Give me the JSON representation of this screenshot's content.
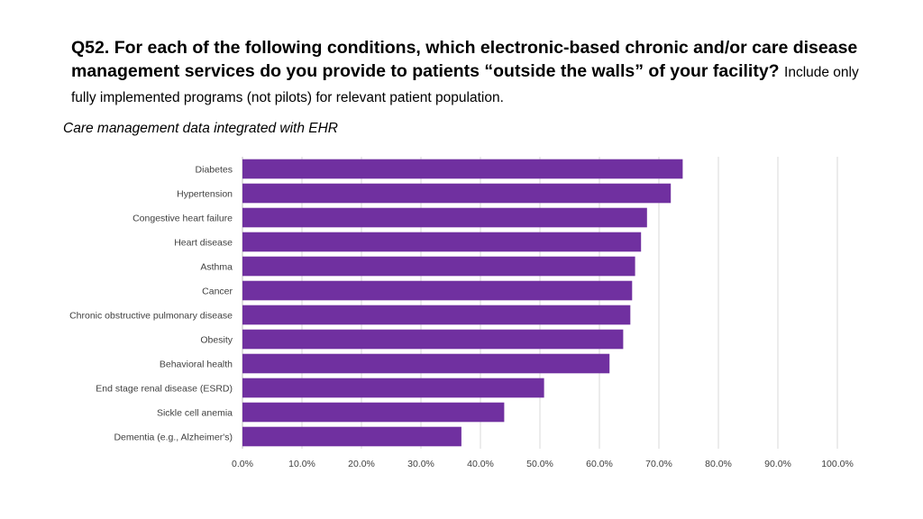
{
  "question": {
    "number_and_text": "Q52. For each of the following conditions, which electronic-based chronic and/or care disease management services do you provide to patients “outside the walls” of your facility?",
    "instruction": "Include only fully implemented programs (not pilots) for relevant patient population."
  },
  "chart_data": {
    "type": "bar",
    "orientation": "horizontal",
    "title": "Care management data integrated with EHR",
    "xlabel": "",
    "ylabel": "",
    "xlim": [
      0,
      1.0
    ],
    "x_ticks": [
      "0.0%",
      "10.0%",
      "20.0%",
      "30.0%",
      "40.0%",
      "50.0%",
      "60.0%",
      "70.0%",
      "80.0%",
      "90.0%",
      "100.0%"
    ],
    "grid": true,
    "bar_color": "#7030a0",
    "categories": [
      "Diabetes",
      "Hypertension",
      "Congestive heart failure",
      "Heart disease",
      "Asthma",
      "Cancer",
      "Chronic obstructive pulmonary disease",
      "Obesity",
      "Behavioral health",
      "End stage renal disease (ESRD)",
      "Sickle cell anemia",
      "Dementia (e.g., Alzheimer's)"
    ],
    "values": [
      0.74,
      0.72,
      0.68,
      0.67,
      0.66,
      0.655,
      0.652,
      0.64,
      0.617,
      0.507,
      0.44,
      0.368
    ]
  }
}
